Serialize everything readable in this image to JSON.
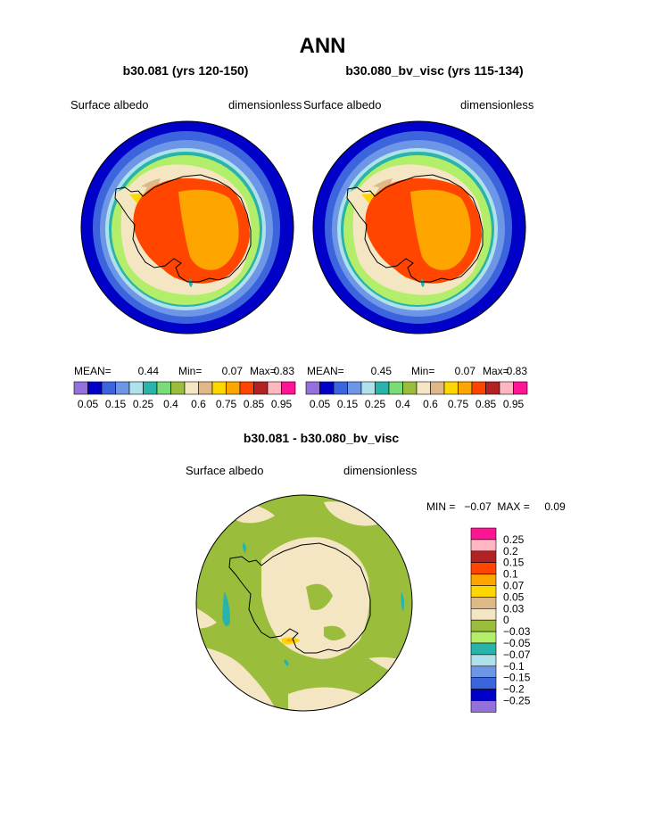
{
  "main_title": "ANN",
  "panels": [
    {
      "case": "b30.081 (yrs 120-150)",
      "field": "Surface albedo",
      "units": "dimensionless",
      "stats": {
        "mean_label": "MEAN=",
        "mean": "0.44",
        "min_label": "Min=",
        "min": "0.07",
        "max_label": "Max=",
        "max": "0.83"
      }
    },
    {
      "case": "b30.080_bv_visc (yrs 115-134)",
      "field": "Surface albedo",
      "units": "dimensionless",
      "stats": {
        "mean_label": "MEAN=",
        "mean": "0.45",
        "min_label": "Min=",
        "min": "0.07",
        "max_label": "Max=",
        "max": "0.83"
      }
    }
  ],
  "colorbar_top": {
    "colors": [
      "#9370db",
      "#0000c8",
      "#3c64dc",
      "#6e96e6",
      "#afe1eb",
      "#28b4aa",
      "#78dc78",
      "#9abd3c",
      "#f5e6c3",
      "#deb887",
      "#ffd700",
      "#ffa500",
      "#ff4500",
      "#b22222",
      "#ffb6c1",
      "#ff1493"
    ],
    "labels": [
      "0.05",
      "0.15",
      "0.25",
      "0.4",
      "0.6",
      "0.75",
      "0.85",
      "0.95"
    ]
  },
  "diff": {
    "title": "b30.081 - b30.080_bv_visc",
    "field": "Surface albedo",
    "units": "dimensionless",
    "minmax": "MIN =   −0.07  MAX =     0.09",
    "colors": [
      "#ff1493",
      "#ffb6c1",
      "#b22222",
      "#ff4500",
      "#ffa500",
      "#ffd700",
      "#deb887",
      "#f5e6c3",
      "#9abd3c",
      "#b3ee6a",
      "#28b4aa",
      "#afe1eb",
      "#6e96e6",
      "#3c64dc",
      "#0000c8",
      "#9370db"
    ],
    "labels": [
      "0.25",
      "0.2",
      "0.15",
      "0.1",
      "0.07",
      "0.05",
      "0.03",
      "0",
      "−0.03",
      "−0.05",
      "−0.07",
      "−0.1",
      "−0.15",
      "−0.2",
      "−0.25"
    ]
  }
}
